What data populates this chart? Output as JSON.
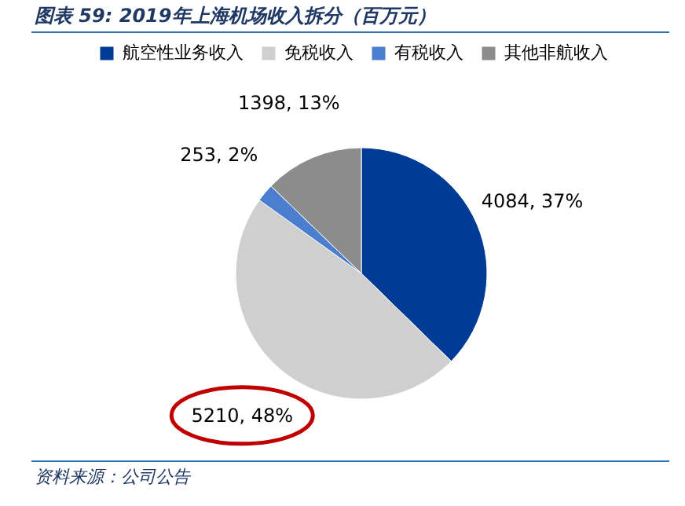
{
  "chart_data": {
    "type": "pie",
    "title": "图表 59: 2019年上海机场收入拆分（百万元）",
    "categories": [
      "航空性业务收入",
      "免税收入",
      "有税收入",
      "其他非航收入"
    ],
    "values": [
      4084,
      5210,
      253,
      1398
    ],
    "colors": [
      "#003c96",
      "#cfcfcf",
      "#4a7fd0",
      "#8c8c8c"
    ],
    "value_labels": [
      "4084, 37%",
      "5210, 48%",
      "253, 2%",
      "1398, 13%"
    ],
    "legend": "top",
    "annotations": [
      "资料来源：公司公告"
    ]
  }
}
